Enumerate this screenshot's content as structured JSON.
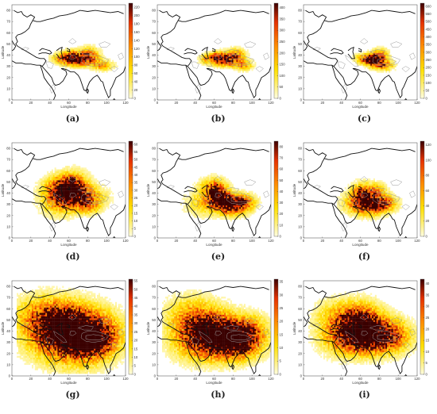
{
  "figure": {
    "panels": [
      {
        "label": "(a)",
        "cbar_ticks": [
          "0",
          "20",
          "40",
          "60",
          "80",
          "100",
          "120",
          "140",
          "160",
          "180",
          "200",
          "220"
        ],
        "cbar_max": 230,
        "style": "compact",
        "hotspots": [
          [
            70,
            35,
            16,
            5,
            1.0
          ],
          [
            62,
            38,
            8,
            5,
            0.7
          ],
          [
            95,
            30,
            10,
            4,
            0.5
          ],
          [
            50,
            37,
            8,
            4,
            0.45
          ],
          [
            80,
            40,
            10,
            6,
            0.55
          ]
        ]
      },
      {
        "label": "(b)",
        "cbar_ticks": [
          "0",
          "50",
          "100",
          "150",
          "200",
          "250",
          "300",
          "350",
          "400"
        ],
        "cbar_max": 420,
        "style": "compact",
        "hotspots": [
          [
            72,
            35,
            14,
            5,
            1.0
          ],
          [
            64,
            38,
            7,
            4,
            0.75
          ],
          [
            90,
            30,
            9,
            4,
            0.5
          ],
          [
            52,
            36,
            8,
            4,
            0.45
          ],
          [
            82,
            40,
            9,
            5,
            0.5
          ]
        ]
      },
      {
        "label": "(c)",
        "cbar_ticks": [
          "0",
          "50",
          "100",
          "150",
          "200",
          "250",
          "300",
          "350",
          "400",
          "450",
          "500",
          "550",
          "600"
        ],
        "cbar_max": 620,
        "style": "compact",
        "hotspots": [
          [
            75,
            34,
            10,
            5,
            1.0
          ],
          [
            70,
            36,
            6,
            4,
            0.9
          ],
          [
            85,
            30,
            9,
            4,
            0.55
          ],
          [
            60,
            36,
            7,
            4,
            0.4
          ],
          [
            80,
            40,
            8,
            5,
            0.5
          ]
        ]
      },
      {
        "label": "(d)",
        "cbar_ticks": [
          "0",
          "5",
          "10",
          "15",
          "20",
          "25",
          "30",
          "35",
          "40",
          "45",
          "50",
          "55",
          "60"
        ],
        "cbar_max": 62,
        "style": "broad",
        "hotspots": [
          [
            62,
            45,
            12,
            9,
            1.0
          ],
          [
            55,
            38,
            14,
            8,
            0.6
          ],
          [
            75,
            36,
            16,
            7,
            0.65
          ],
          [
            50,
            30,
            15,
            9,
            0.35
          ],
          [
            80,
            27,
            10,
            5,
            0.4
          ],
          [
            45,
            45,
            12,
            7,
            0.3
          ]
        ]
      },
      {
        "label": "(e)",
        "cbar_ticks": [
          "0",
          "10",
          "20",
          "30",
          "40",
          "50",
          "60",
          "70",
          "80"
        ],
        "cbar_max": 85,
        "style": "broad",
        "hotspots": [
          [
            62,
            40,
            8,
            7,
            0.9
          ],
          [
            80,
            28,
            12,
            6,
            1.0
          ],
          [
            68,
            33,
            10,
            6,
            0.7
          ],
          [
            50,
            30,
            15,
            8,
            0.35
          ],
          [
            90,
            32,
            10,
            5,
            0.45
          ],
          [
            55,
            45,
            10,
            6,
            0.3
          ]
        ]
      },
      {
        "label": "(f)",
        "cbar_ticks": [
          "0",
          "20",
          "40",
          "60",
          "80",
          "100",
          "120"
        ],
        "cbar_max": 125,
        "style": "broad",
        "hotspots": [
          [
            70,
            30,
            12,
            7,
            1.0
          ],
          [
            60,
            38,
            8,
            7,
            0.7
          ],
          [
            85,
            30,
            10,
            5,
            0.6
          ],
          [
            55,
            30,
            12,
            7,
            0.35
          ],
          [
            75,
            42,
            8,
            5,
            0.45
          ]
        ]
      },
      {
        "label": "(g)",
        "cbar_ticks": [
          "0",
          "5",
          "10",
          "15",
          "20",
          "25",
          "30",
          "35",
          "40",
          "45",
          "50",
          "55"
        ],
        "cbar_max": 56,
        "style": "wide",
        "hotspots": [
          [
            65,
            35,
            22,
            14,
            1.0
          ],
          [
            80,
            30,
            14,
            8,
            0.85
          ],
          [
            55,
            45,
            16,
            10,
            0.7
          ],
          [
            40,
            40,
            18,
            12,
            0.45
          ],
          [
            30,
            55,
            18,
            10,
            0.3
          ],
          [
            90,
            38,
            14,
            10,
            0.5
          ]
        ]
      },
      {
        "label": "(h)",
        "cbar_ticks": [
          "0",
          "5",
          "10",
          "15",
          "20",
          "25",
          "30",
          "35"
        ],
        "cbar_max": 36,
        "style": "wide",
        "hotspots": [
          [
            70,
            32,
            20,
            10,
            1.0
          ],
          [
            55,
            40,
            16,
            10,
            0.7
          ],
          [
            85,
            30,
            12,
            8,
            0.7
          ],
          [
            40,
            35,
            16,
            12,
            0.45
          ],
          [
            35,
            55,
            16,
            10,
            0.3
          ],
          [
            95,
            40,
            12,
            8,
            0.4
          ]
        ]
      },
      {
        "label": "(i)",
        "cbar_ticks": [
          "0",
          "5",
          "10",
          "15",
          "20",
          "25",
          "30",
          "35",
          "40"
        ],
        "cbar_max": 42,
        "style": "wide",
        "hotspots": [
          [
            62,
            45,
            12,
            10,
            1.0
          ],
          [
            75,
            32,
            18,
            8,
            0.8
          ],
          [
            50,
            40,
            16,
            10,
            0.5
          ],
          [
            40,
            35,
            14,
            10,
            0.35
          ],
          [
            90,
            38,
            12,
            8,
            0.45
          ],
          [
            35,
            55,
            14,
            8,
            0.25
          ]
        ]
      }
    ],
    "xticks": [
      "0",
      "20",
      "40",
      "60",
      "80",
      "100",
      "120"
    ],
    "yticks": [
      "0",
      "10",
      "20",
      "30",
      "40",
      "50",
      "60",
      "70",
      "80"
    ],
    "xlabel": "Longitude",
    "ylabel": "Latitude",
    "colors": {
      "low": "#fffde0",
      "mid1": "#ffe000",
      "mid2": "#ff8c00",
      "mid3": "#e53000",
      "high": "#3a0000",
      "coast": "#111111",
      "contour": "#999999"
    }
  },
  "chart_data": [
    {
      "type": "heatmap",
      "label": "(a)",
      "xlabel": "Longitude",
      "ylabel": "Latitude",
      "xlim": [
        0,
        120
      ],
      "ylim": [
        0,
        85
      ],
      "colorbar_range": [
        0,
        230
      ],
      "hotspot_lon_lat": [
        [
          70,
          35
        ],
        [
          62,
          38
        ],
        [
          95,
          30
        ]
      ]
    },
    {
      "type": "heatmap",
      "label": "(b)",
      "xlabel": "Longitude",
      "ylabel": "Latitude",
      "xlim": [
        0,
        120
      ],
      "ylim": [
        0,
        85
      ],
      "colorbar_range": [
        0,
        420
      ],
      "hotspot_lon_lat": [
        [
          72,
          35
        ],
        [
          64,
          38
        ],
        [
          90,
          30
        ]
      ]
    },
    {
      "type": "heatmap",
      "label": "(c)",
      "xlabel": "Longitude",
      "ylabel": "Latitude",
      "xlim": [
        0,
        120
      ],
      "ylim": [
        0,
        85
      ],
      "colorbar_range": [
        0,
        620
      ],
      "hotspot_lon_lat": [
        [
          75,
          34
        ],
        [
          70,
          36
        ],
        [
          85,
          30
        ]
      ]
    },
    {
      "type": "heatmap",
      "label": "(d)",
      "xlabel": "Longitude",
      "ylabel": "Latitude",
      "xlim": [
        0,
        120
      ],
      "ylim": [
        0,
        85
      ],
      "colorbar_range": [
        0,
        62
      ],
      "hotspot_lon_lat": [
        [
          62,
          45
        ],
        [
          75,
          36
        ],
        [
          55,
          38
        ]
      ]
    },
    {
      "type": "heatmap",
      "label": "(e)",
      "xlabel": "Longitude",
      "ylabel": "Latitude",
      "xlim": [
        0,
        120
      ],
      "ylim": [
        0,
        85
      ],
      "colorbar_range": [
        0,
        85
      ],
      "hotspot_lon_lat": [
        [
          80,
          28
        ],
        [
          62,
          40
        ],
        [
          68,
          33
        ]
      ]
    },
    {
      "type": "heatmap",
      "label": "(f)",
      "xlabel": "Longitude",
      "ylabel": "Latitude",
      "xlim": [
        0,
        120
      ],
      "ylim": [
        0,
        85
      ],
      "colorbar_range": [
        0,
        125
      ],
      "hotspot_lon_lat": [
        [
          70,
          30
        ],
        [
          60,
          38
        ],
        [
          85,
          30
        ]
      ]
    },
    {
      "type": "heatmap",
      "label": "(g)",
      "xlabel": "Longitude",
      "ylabel": "Latitude",
      "xlim": [
        0,
        120
      ],
      "ylim": [
        0,
        85
      ],
      "colorbar_range": [
        0,
        56
      ],
      "hotspot_lon_lat": [
        [
          65,
          35
        ],
        [
          80,
          30
        ],
        [
          55,
          45
        ]
      ]
    },
    {
      "type": "heatmap",
      "label": "(h)",
      "xlabel": "Longitude",
      "ylabel": "Latitude",
      "xlim": [
        0,
        120
      ],
      "ylim": [
        0,
        85
      ],
      "colorbar_range": [
        0,
        36
      ],
      "hotspot_lon_lat": [
        [
          70,
          32
        ],
        [
          55,
          40
        ],
        [
          85,
          30
        ]
      ]
    },
    {
      "type": "heatmap",
      "label": "(i)",
      "xlabel": "Longitude",
      "ylabel": "Latitude",
      "xlim": [
        0,
        120
      ],
      "ylim": [
        0,
        85
      ],
      "colorbar_range": [
        0,
        42
      ],
      "hotspot_lon_lat": [
        [
          62,
          45
        ],
        [
          75,
          32
        ],
        [
          50,
          40
        ]
      ]
    }
  ]
}
